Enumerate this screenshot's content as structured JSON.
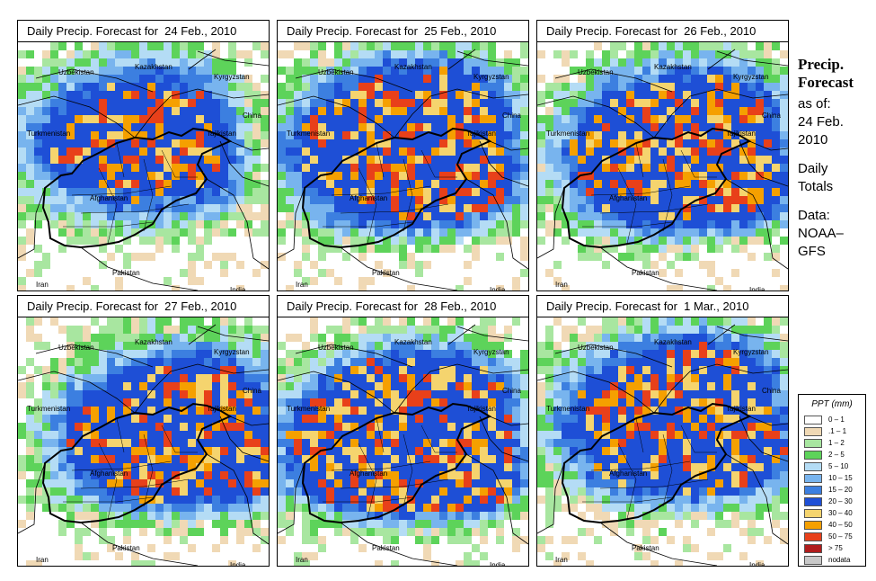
{
  "panels": [
    {
      "title": "Daily Precip. Forecast for  24 Feb., 2010",
      "intensity": 0.55,
      "seed": 11
    },
    {
      "title": "Daily Precip. Forecast for  25 Feb., 2010",
      "intensity": 0.85,
      "seed": 23
    },
    {
      "title": "Daily Precip. Forecast for  26 Feb., 2010",
      "intensity": 0.8,
      "seed": 37
    },
    {
      "title": "Daily Precip. Forecast for  27 Feb., 2010",
      "intensity": 0.75,
      "seed": 41
    },
    {
      "title": "Daily Precip. Forecast for  28 Feb., 2010",
      "intensity": 1.0,
      "seed": 53
    },
    {
      "title": "Daily Precip. Forecast for  1 Mar., 2010",
      "intensity": 0.8,
      "seed": 67
    }
  ],
  "map_labels": {
    "uzbekistan": "Uzbekistan",
    "kazakhstan": "Kazakhstan",
    "kyrgyzstan": "Kyrgyzstan",
    "china": "China",
    "turkmenistan": "Turkmenistan",
    "tajikistan": "Tajikistan",
    "afghanistan": "Afghanistan",
    "pakistan": "Pakistan",
    "iran": "Iran",
    "india": "India"
  },
  "side": {
    "title_line1": "Precip.",
    "title_line2": "Forecast",
    "asof": "as of:",
    "date_line1": "24 Feb.",
    "date_line2": "2010",
    "totals_line1": "Daily",
    "totals_line2": "Totals",
    "data_line1": "Data:",
    "data_line2": "NOAA–",
    "data_line3": "GFS"
  },
  "legend": {
    "title": "PPT (mm)",
    "items": [
      {
        "label": "0 – 1",
        "color": "#ffffff"
      },
      {
        "label": ".1 – 1",
        "color": "#f0d9b5"
      },
      {
        "label": "1 – 2",
        "color": "#a8e6a0"
      },
      {
        "label": "2 – 5",
        "color": "#5dd35a"
      },
      {
        "label": "5 – 10",
        "color": "#b4dcf5"
      },
      {
        "label": "10 – 15",
        "color": "#78b4ee"
      },
      {
        "label": "15 – 20",
        "color": "#3c7fe0"
      },
      {
        "label": "20 – 30",
        "color": "#1e4fd6"
      },
      {
        "label": "30 – 40",
        "color": "#f5d46e"
      },
      {
        "label": "40 – 50",
        "color": "#f5a000"
      },
      {
        "label": "50 – 75",
        "color": "#e8401a"
      },
      {
        "label": "> 75",
        "color": "#b01c1c"
      },
      {
        "label": "nodata",
        "color": "#c8c8c8"
      }
    ]
  }
}
